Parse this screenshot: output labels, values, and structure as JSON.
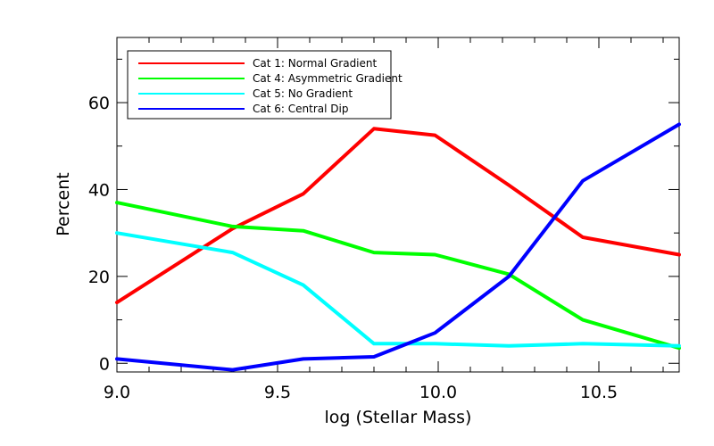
{
  "chart_data": {
    "type": "line",
    "title": "",
    "xlabel": "log (Stellar Mass)",
    "ylabel": "Percent",
    "xlim": [
      9.0,
      10.75
    ],
    "ylim": [
      -2,
      75
    ],
    "xticks": [
      "9.0",
      "9.5",
      "10.0",
      "10.5"
    ],
    "yticks": [
      "0",
      "20",
      "40",
      "60"
    ],
    "legend_position": "top-left",
    "grid": false,
    "x": [
      9.0,
      9.36,
      9.58,
      9.8,
      9.99,
      10.22,
      10.45,
      10.75
    ],
    "series": [
      {
        "name": "Cat 1: Normal Gradient",
        "color": "#ff0000",
        "values": [
          14,
          31,
          39,
          54,
          52.5,
          41,
          29,
          25
        ]
      },
      {
        "name": "Cat 4: Asymmetric Gradient",
        "color": "#00ff00",
        "values": [
          37,
          31.5,
          30.5,
          25.5,
          25,
          20.5,
          10,
          3.5
        ]
      },
      {
        "name": "Cat 5: No Gradient",
        "color": "#00ffff",
        "values": [
          30,
          25.5,
          18,
          4.5,
          4.5,
          4,
          4.5,
          4
        ]
      },
      {
        "name": "Cat 6: Central Dip",
        "color": "#0000ff",
        "values": [
          1,
          -1.5,
          1,
          1.5,
          7,
          20,
          42,
          55
        ]
      }
    ]
  }
}
